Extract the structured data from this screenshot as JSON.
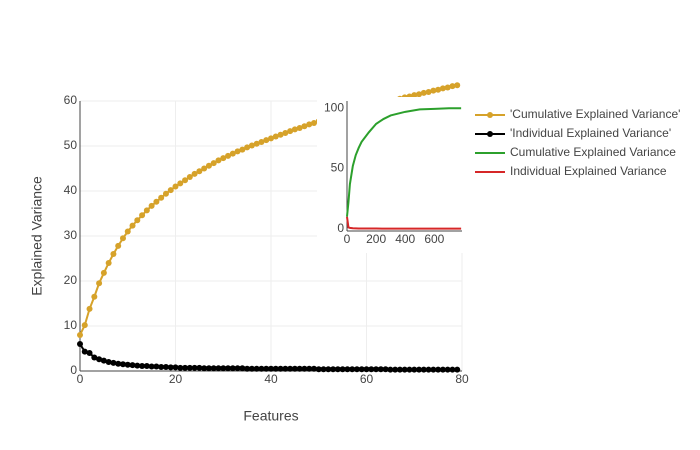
{
  "chart_data": [
    {
      "type": "line",
      "x_label": "Features",
      "y_label": "Explained Variance",
      "markers": true,
      "grid": true,
      "xlim": [
        0,
        80
      ],
      "xticks": [
        0,
        20,
        40,
        60,
        80
      ],
      "ylim": [
        0,
        60
      ],
      "yticks": [
        0,
        10,
        20,
        30,
        40,
        50,
        60
      ],
      "x": [
        0,
        1,
        2,
        3,
        4,
        5,
        6,
        7,
        8,
        9,
        10,
        11,
        12,
        13,
        14,
        15,
        16,
        17,
        18,
        19,
        20,
        21,
        22,
        23,
        24,
        25,
        26,
        27,
        28,
        29,
        30,
        31,
        32,
        33,
        34,
        35,
        36,
        37,
        38,
        39,
        40,
        41,
        42,
        43,
        44,
        45,
        46,
        47,
        48,
        49,
        50,
        51,
        52,
        53,
        54,
        55,
        56,
        57,
        58,
        59,
        60,
        61,
        62,
        63,
        64,
        65,
        66,
        67,
        68,
        69,
        70,
        71,
        72,
        73,
        74,
        75,
        76,
        77,
        78,
        79
      ],
      "series": [
        {
          "name": "'Cumulative Explained Variance'",
          "color": "#d6a22a",
          "values": [
            8.0,
            10.2,
            13.8,
            16.5,
            19.5,
            21.8,
            24.0,
            26.0,
            27.8,
            29.5,
            31.0,
            32.3,
            33.5,
            34.6,
            35.7,
            36.7,
            37.6,
            38.5,
            39.4,
            40.2,
            41.0,
            41.7,
            42.4,
            43.1,
            43.8,
            44.4,
            45.0,
            45.6,
            46.2,
            46.8,
            47.3,
            47.8,
            48.3,
            48.8,
            49.2,
            49.7,
            50.1,
            50.5,
            50.9,
            51.3,
            51.7,
            52.1,
            52.5,
            52.9,
            53.3,
            53.7,
            54.0,
            54.4,
            54.8,
            55.1,
            55.5,
            55.8,
            56.1,
            56.4,
            56.7,
            57.0,
            57.3,
            57.6,
            57.9,
            58.2,
            58.5,
            58.8,
            59.1,
            59.4,
            59.7,
            60.0,
            60.2,
            60.5,
            60.8,
            61.0,
            61.3,
            61.5,
            61.8,
            62.0,
            62.3,
            62.5,
            62.8,
            63.0,
            63.3,
            63.5
          ]
        },
        {
          "name": "'Individual Explained Variance'",
          "color": "#000000",
          "values": [
            6.0,
            4.3,
            4.0,
            3.0,
            2.6,
            2.3,
            2.0,
            1.8,
            1.6,
            1.5,
            1.4,
            1.3,
            1.2,
            1.1,
            1.1,
            1.0,
            1.0,
            0.9,
            0.9,
            0.8,
            0.8,
            0.7,
            0.7,
            0.7,
            0.7,
            0.7,
            0.6,
            0.6,
            0.6,
            0.6,
            0.6,
            0.6,
            0.6,
            0.6,
            0.6,
            0.5,
            0.5,
            0.5,
            0.5,
            0.5,
            0.5,
            0.5,
            0.5,
            0.5,
            0.5,
            0.5,
            0.5,
            0.5,
            0.5,
            0.5,
            0.4,
            0.4,
            0.4,
            0.4,
            0.4,
            0.4,
            0.4,
            0.4,
            0.4,
            0.4,
            0.4,
            0.4,
            0.4,
            0.4,
            0.4,
            0.3,
            0.3,
            0.3,
            0.3,
            0.3,
            0.3,
            0.3,
            0.3,
            0.3,
            0.3,
            0.3,
            0.3,
            0.3,
            0.3,
            0.3
          ]
        }
      ]
    },
    {
      "type": "line",
      "markers": false,
      "grid": false,
      "xlim": [
        0,
        790
      ],
      "xticks": [
        0,
        200,
        400,
        600
      ],
      "ylim": [
        -2,
        106
      ],
      "yticks": [
        0,
        50,
        100
      ],
      "x": [
        0,
        10,
        20,
        40,
        60,
        80,
        100,
        150,
        200,
        250,
        300,
        400,
        500,
        600,
        700,
        784
      ],
      "series": [
        {
          "name": "Cumulative Explained Variance",
          "color": "#2ca02c",
          "values": [
            10,
            22,
            37,
            52,
            61,
            67,
            72,
            80,
            87,
            91,
            94,
            97,
            99,
            99.5,
            100,
            100
          ]
        },
        {
          "name": "Individual Explained Variance",
          "color": "#d62728",
          "values": [
            9.7,
            1,
            0.6,
            0.3,
            0.2,
            0.1,
            0.1,
            0.05,
            0.03,
            0.02,
            0.01,
            0,
            0,
            0,
            0,
            0
          ]
        }
      ]
    }
  ]
}
